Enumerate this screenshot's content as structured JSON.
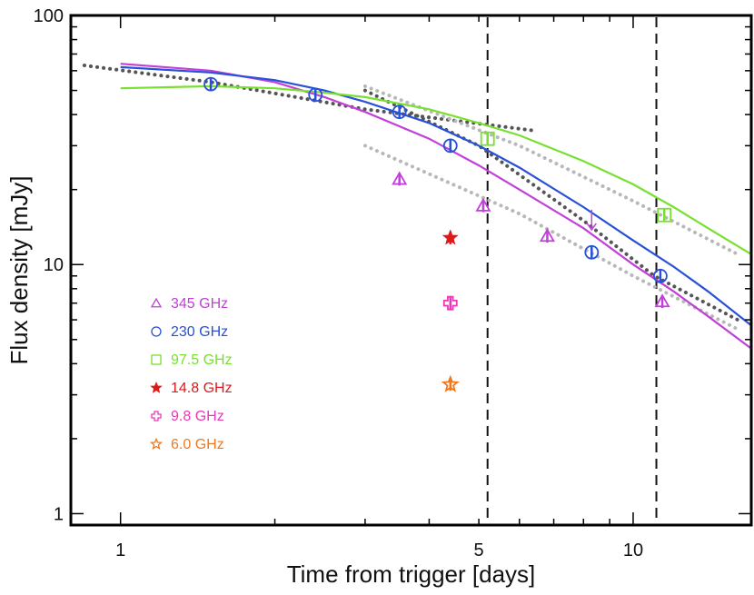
{
  "chart_data": {
    "type": "scatter",
    "xlabel": "Time from trigger [days]",
    "ylabel": "Flux density [mJy]",
    "xscale": "log",
    "yscale": "log",
    "xlim": [
      0.8,
      17
    ],
    "ylim": [
      0.9,
      100
    ],
    "x_tick_labels": [
      {
        "value": 1,
        "label": "1"
      },
      {
        "value": 5,
        "label": "5"
      },
      {
        "value": 10,
        "label": "10"
      }
    ],
    "y_tick_labels": [
      {
        "value": 1,
        "label": "1"
      },
      {
        "value": 10,
        "label": "10"
      },
      {
        "value": 100,
        "label": "100"
      }
    ],
    "legend_position": "left-middle",
    "vlines": [
      5.2,
      11.1
    ],
    "series": [
      {
        "name": "345 GHz",
        "marker": "triangle",
        "color": "#c040d8",
        "points": [
          [
            3.5,
            22
          ],
          [
            5.1,
            17.2
          ],
          [
            6.8,
            13
          ],
          [
            11.4,
            7.1
          ]
        ],
        "upper_limits": [
          [
            8.3,
            15
          ]
        ]
      },
      {
        "name": "230 GHz",
        "marker": "circle",
        "color": "#2850d8",
        "points": [
          [
            1.5,
            53
          ],
          [
            2.4,
            48
          ],
          [
            3.5,
            41
          ],
          [
            4.4,
            30
          ],
          [
            8.3,
            11.2
          ],
          [
            11.3,
            9
          ]
        ]
      },
      {
        "name": "97.5 GHz",
        "marker": "square",
        "color": "#78e030",
        "points": [
          [
            5.2,
            32
          ],
          [
            11.5,
            15.8
          ]
        ]
      },
      {
        "name": "14.8 GHz",
        "marker": "filled-star",
        "color": "#e01818",
        "points": [
          [
            4.4,
            12.8
          ]
        ]
      },
      {
        "name": "9.8 GHz",
        "marker": "cross",
        "color": "#e838b8",
        "points": [
          [
            4.4,
            7
          ]
        ]
      },
      {
        "name": "6.0 GHz",
        "marker": "star",
        "color": "#f07820",
        "points": [
          [
            4.4,
            3.3
          ]
        ]
      }
    ],
    "model_curves": [
      {
        "name": "345 GHz model",
        "color": "#c040d8",
        "points": [
          [
            1.0,
            64
          ],
          [
            1.5,
            60
          ],
          [
            2.0,
            54
          ],
          [
            2.5,
            47
          ],
          [
            3.0,
            41
          ],
          [
            4.0,
            32
          ],
          [
            5.0,
            25
          ],
          [
            6.0,
            20
          ],
          [
            8.0,
            14
          ],
          [
            10.0,
            10
          ],
          [
            12.0,
            7.8
          ],
          [
            14.0,
            6.2
          ],
          [
            17.0,
            4.6
          ]
        ]
      },
      {
        "name": "230 GHz model",
        "color": "#2850d8",
        "points": [
          [
            1.0,
            62
          ],
          [
            1.5,
            59
          ],
          [
            2.0,
            55
          ],
          [
            2.5,
            50
          ],
          [
            3.0,
            45
          ],
          [
            4.0,
            37
          ],
          [
            5.0,
            30
          ],
          [
            6.0,
            24.5
          ],
          [
            8.0,
            17
          ],
          [
            10.0,
            12.5
          ],
          [
            12.0,
            9.8
          ],
          [
            14.0,
            7.8
          ],
          [
            17.0,
            5.7
          ]
        ]
      },
      {
        "name": "97.5 GHz model",
        "color": "#78e030",
        "points": [
          [
            1.0,
            51
          ],
          [
            1.5,
            52
          ],
          [
            2.0,
            51
          ],
          [
            2.5,
            49
          ],
          [
            3.0,
            47
          ],
          [
            4.0,
            42
          ],
          [
            5.0,
            37
          ],
          [
            6.0,
            33
          ],
          [
            8.0,
            26
          ],
          [
            10.0,
            21
          ],
          [
            12.0,
            17
          ],
          [
            14.0,
            14
          ],
          [
            17.0,
            11
          ]
        ]
      }
    ],
    "power_law_fits": [
      {
        "name": "early fit",
        "color": "#555555",
        "points": [
          [
            0.85,
            63
          ],
          [
            1.5,
            54
          ],
          [
            3.0,
            42
          ],
          [
            6.4,
            34.5
          ]
        ]
      },
      {
        "name": "late fit",
        "color": "#555555",
        "points": [
          [
            3.0,
            50
          ],
          [
            5.0,
            30
          ],
          [
            8.0,
            15
          ],
          [
            11.0,
            9
          ],
          [
            16.0,
            6
          ]
        ]
      },
      {
        "name": "upper envelope",
        "color": "#b8b8b8",
        "points": [
          [
            3.0,
            52
          ],
          [
            6.0,
            30
          ],
          [
            10.0,
            18
          ],
          [
            16.0,
            11
          ]
        ]
      },
      {
        "name": "lower envelope",
        "color": "#b8b8b8",
        "points": [
          [
            3.0,
            30
          ],
          [
            6.0,
            16
          ],
          [
            10.0,
            9
          ],
          [
            16.0,
            5.5
          ]
        ]
      }
    ]
  }
}
